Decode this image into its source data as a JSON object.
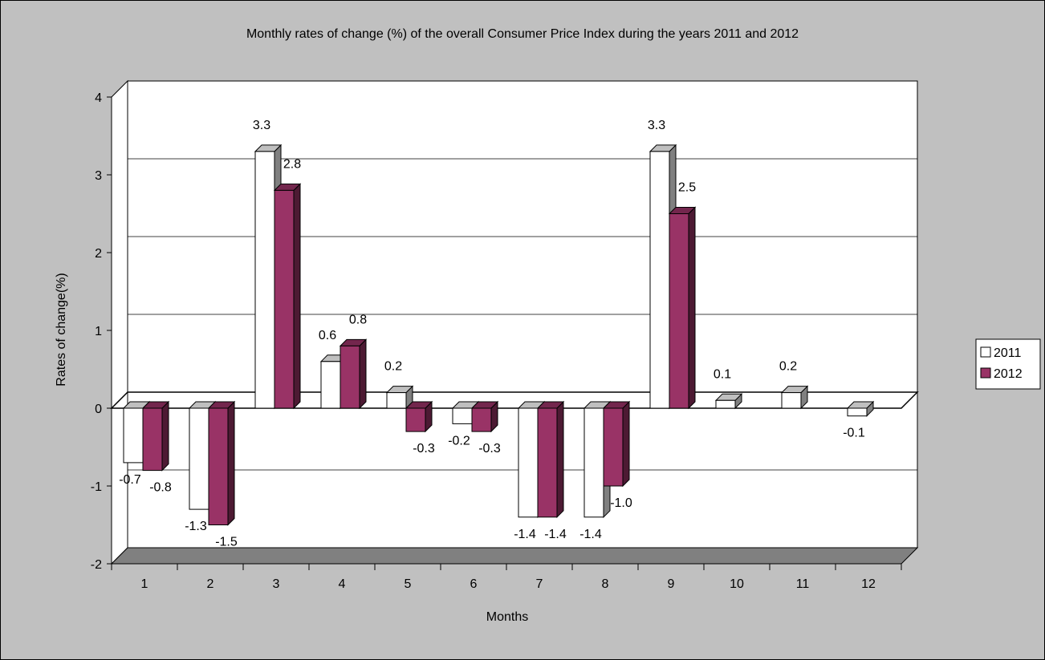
{
  "chart_data": {
    "type": "bar",
    "title": "Monthly rates of change (%) of the overall Consumer Price Index during the years 2011 and 2012",
    "xlabel": "Months",
    "ylabel": "Rates of change(%)",
    "categories": [
      "1",
      "2",
      "3",
      "4",
      "5",
      "6",
      "7",
      "8",
      "9",
      "10",
      "11",
      "12"
    ],
    "series": [
      {
        "name": "2011",
        "values": [
          -0.7,
          -1.3,
          3.3,
          0.6,
          0.2,
          -0.2,
          -1.4,
          -1.4,
          3.3,
          0.1,
          0.2,
          -0.1
        ],
        "color": "#ffffff"
      },
      {
        "name": "2012",
        "values": [
          -0.8,
          -1.5,
          2.8,
          0.8,
          -0.3,
          -0.3,
          -1.4,
          -1.0,
          2.5,
          null,
          null,
          null
        ],
        "color": "#993366"
      }
    ],
    "data_labels": {
      "2011": [
        "-0.7",
        "-1.3",
        "3.3",
        "0.6",
        "0.2",
        "-0.2",
        "-1.4",
        "-1.4",
        "3.3",
        "0.1",
        "0.2",
        "-0.1"
      ],
      "2012": [
        "-0.8",
        "-1.5",
        "2.8",
        "0.8",
        "-0.3",
        "-0.3",
        "-1.4",
        "-1.0",
        "2.5",
        "",
        "",
        ""
      ]
    },
    "yticks": [
      "4",
      "3",
      "2",
      "1",
      "0",
      "-1",
      "-2"
    ],
    "ylim": [
      -2,
      4
    ],
    "grid": true,
    "legend_position": "right",
    "colors": {
      "background": "#c0c0c0",
      "plot_area": "#ffffff",
      "floor": "#808080",
      "series_2011": "#ffffff",
      "series_2012": "#993366"
    }
  }
}
